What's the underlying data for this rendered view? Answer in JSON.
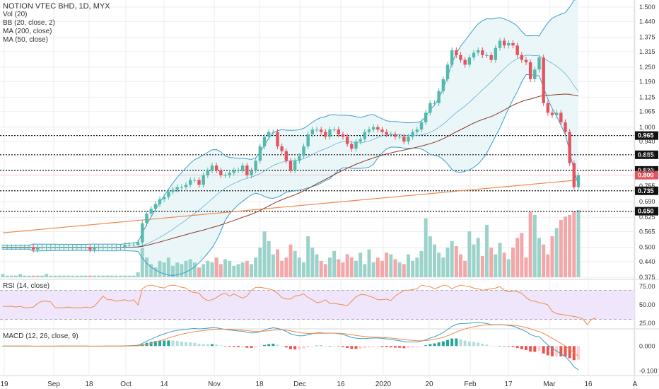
{
  "header": {
    "title": "NOTION VTEC BHD, 1D, MYX",
    "indicators": [
      "Vol (20)",
      "BB (20, close, 2)",
      "MA (200, close)",
      "MA (50, close)"
    ]
  },
  "panes": {
    "rsi_label": "RSI (14, close)",
    "macd_label": "MACD (12, 26, close, 9)"
  },
  "colors": {
    "up": "#53b9ab",
    "down": "#e5535f",
    "vol_up": "#9bd3cb",
    "vol_down": "#f4a7a9",
    "bb_line": "#3c9fc8",
    "bb_fill": "#e6f5f7",
    "ma200": "#f08a4b",
    "ma50": "#8b3a2a",
    "rsi_line": "#f08a4b",
    "rsi_band": "#efe6fb",
    "macd_line": "#3c9fc8",
    "signal_line": "#f08a4b"
  },
  "chart_data": {
    "type": "candlestick",
    "x_ticks": [
      "19",
      "Sep",
      "18",
      "Oct",
      "14",
      "Nov",
      "18",
      "Dec",
      "16",
      "2020",
      "20",
      "Feb",
      "17",
      "Mar",
      "16",
      "A"
    ],
    "price_axis": [
      "1.500",
      "1.440",
      "1.375",
      "1.315",
      "1.250",
      "1.190",
      "1.125",
      "1.065",
      "1.000",
      "0.940",
      "0.880",
      "0.820",
      "0.755",
      "0.690",
      "0.625",
      "0.565",
      "0.500",
      "0.440",
      "0.375"
    ],
    "price_scale": [
      0.375,
      1.5
    ],
    "horizontal_levels": [
      {
        "label": "0.965",
        "value": 0.965,
        "style": "dotted"
      },
      {
        "label": "0.885",
        "value": 0.885,
        "style": "dotted"
      },
      {
        "label": "0.820",
        "value": 0.82,
        "style": "dotted"
      },
      {
        "label": "0.735",
        "value": 0.735,
        "style": "dotted"
      },
      {
        "label": "0.650",
        "value": 0.65,
        "style": "dotted"
      }
    ],
    "last_price_badge": {
      "label": "0.800",
      "value": 0.8
    },
    "rsi_axis": [
      "75.00",
      "50.00",
      "25.00"
    ],
    "rsi_scale": [
      20,
      82
    ],
    "rsi_band": [
      30,
      70
    ],
    "macd_axis": [
      "0.000",
      "-0.100"
    ],
    "macd_scale": [
      -0.115,
      0.06
    ],
    "closes": [
      0.5,
      0.5,
      0.5,
      0.5,
      0.5,
      0.5,
      0.5,
      0.49,
      0.5,
      0.5,
      0.5,
      0.5,
      0.5,
      0.5,
      0.5,
      0.5,
      0.5,
      0.5,
      0.5,
      0.5,
      0.49,
      0.5,
      0.5,
      0.5,
      0.5,
      0.5,
      0.5,
      0.5,
      0.51,
      0.51,
      0.51,
      0.52,
      0.6,
      0.64,
      0.66,
      0.68,
      0.7,
      0.71,
      0.73,
      0.74,
      0.75,
      0.75,
      0.76,
      0.78,
      0.78,
      0.76,
      0.8,
      0.82,
      0.84,
      0.82,
      0.8,
      0.8,
      0.81,
      0.82,
      0.82,
      0.84,
      0.8,
      0.82,
      0.86,
      0.92,
      0.96,
      0.98,
      0.98,
      0.92,
      0.9,
      0.86,
      0.82,
      0.86,
      0.88,
      0.92,
      0.97,
      0.99,
      0.99,
      0.98,
      0.96,
      0.99,
      0.99,
      0.97,
      0.96,
      0.93,
      0.91,
      0.94,
      0.95,
      0.98,
      0.99,
      1.0,
      0.99,
      0.98,
      0.97,
      0.97,
      0.96,
      0.96,
      0.94,
      0.96,
      0.98,
      0.99,
      1.02,
      1.06,
      1.1,
      1.1,
      1.15,
      1.2,
      1.26,
      1.32,
      1.3,
      1.28,
      1.26,
      1.29,
      1.31,
      1.32,
      1.3,
      1.3,
      1.28,
      1.33,
      1.36,
      1.34,
      1.35,
      1.34,
      1.3,
      1.28,
      1.27,
      1.2,
      1.24,
      1.29,
      1.1,
      1.06,
      1.05,
      1.06,
      1.02,
      0.98,
      0.85,
      0.75,
      0.8
    ],
    "volume": [
      2,
      1,
      1,
      1,
      2,
      1,
      1,
      1,
      1,
      1,
      2,
      1,
      1,
      1,
      1,
      1,
      1,
      1,
      1,
      1,
      1,
      1,
      1,
      1,
      1,
      1,
      1,
      1,
      1,
      1,
      1,
      3,
      18,
      12,
      8,
      6,
      10,
      9,
      12,
      7,
      9,
      8,
      10,
      11,
      9,
      6,
      8,
      10,
      9,
      12,
      8,
      11,
      10,
      7,
      8,
      9,
      10,
      8,
      12,
      18,
      28,
      22,
      14,
      17,
      10,
      12,
      20,
      16,
      12,
      9,
      25,
      18,
      14,
      10,
      8,
      12,
      16,
      11,
      9,
      14,
      12,
      10,
      15,
      8,
      17,
      9,
      12,
      10,
      15,
      14,
      11,
      9,
      8,
      14,
      10,
      12,
      16,
      36,
      25,
      20,
      15,
      12,
      18,
      22,
      19,
      14,
      10,
      28,
      20,
      24,
      13,
      32,
      18,
      14,
      21,
      15,
      11,
      18,
      24,
      27,
      12,
      40,
      38,
      24,
      20,
      14,
      25,
      30,
      35,
      37,
      38,
      40,
      41
    ],
    "rsi": [
      48,
      48,
      48,
      47,
      48,
      46,
      46,
      47,
      52,
      55,
      55,
      54,
      46,
      46,
      46,
      47,
      46,
      46,
      46,
      47,
      46,
      48,
      55,
      62,
      57,
      57,
      55,
      56,
      57,
      55,
      57,
      50,
      72,
      76,
      77,
      76,
      74,
      73,
      76,
      77,
      76,
      74,
      73,
      68,
      67,
      66,
      59,
      56,
      57,
      60,
      64,
      66,
      62,
      65,
      62,
      59,
      62,
      70,
      74,
      74,
      73,
      72,
      70,
      66,
      60,
      58,
      58,
      62,
      63,
      65,
      60,
      57,
      53,
      54,
      57,
      52,
      52,
      51,
      50,
      49,
      55,
      61,
      64,
      64,
      62,
      60,
      57,
      57,
      58,
      56,
      62,
      66,
      70,
      70,
      71,
      72,
      77,
      76,
      75,
      72,
      74,
      77,
      76,
      72,
      75,
      77,
      76,
      75,
      73,
      72,
      70,
      71,
      72,
      73,
      75,
      70,
      68,
      69,
      68,
      66,
      60,
      56,
      55,
      53,
      52,
      50,
      41,
      38,
      37,
      36,
      35,
      34,
      33,
      31,
      23,
      30,
      32
    ]
  }
}
